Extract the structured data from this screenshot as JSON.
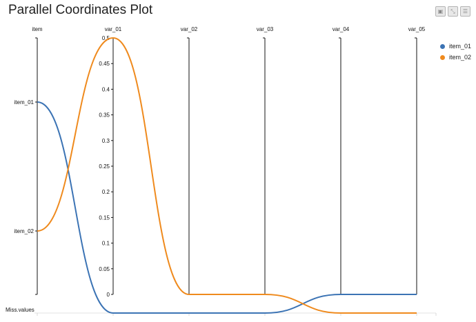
{
  "chart_data": {
    "type": "parallel-coordinates",
    "title": "Parallel Coordinates Plot",
    "axes": [
      "item",
      "var_01",
      "var_02",
      "var_03",
      "var_04",
      "var_05"
    ],
    "item_ticks": [
      "item_01",
      "item_02"
    ],
    "numeric_ticks": [
      "0",
      "0.05",
      "0.1",
      "0.15",
      "0.2",
      "0.25",
      "0.3",
      "0.35",
      "0.4",
      "0.45",
      "0.5"
    ],
    "numeric_range": [
      0,
      0.5
    ],
    "missing_label": "Miss.values",
    "series": [
      {
        "name": "item_01",
        "color": "#3b73b4",
        "values": [
          "item_01",
          null,
          null,
          null,
          0,
          0
        ]
      },
      {
        "name": "item_02",
        "color": "#ef8a1d",
        "values": [
          "item_02",
          0.5,
          0,
          0,
          null,
          null
        ]
      }
    ],
    "legend_position": "top-right"
  },
  "toolbar": {
    "icons": [
      "window-icon",
      "expand-icon",
      "menu-icon"
    ]
  }
}
